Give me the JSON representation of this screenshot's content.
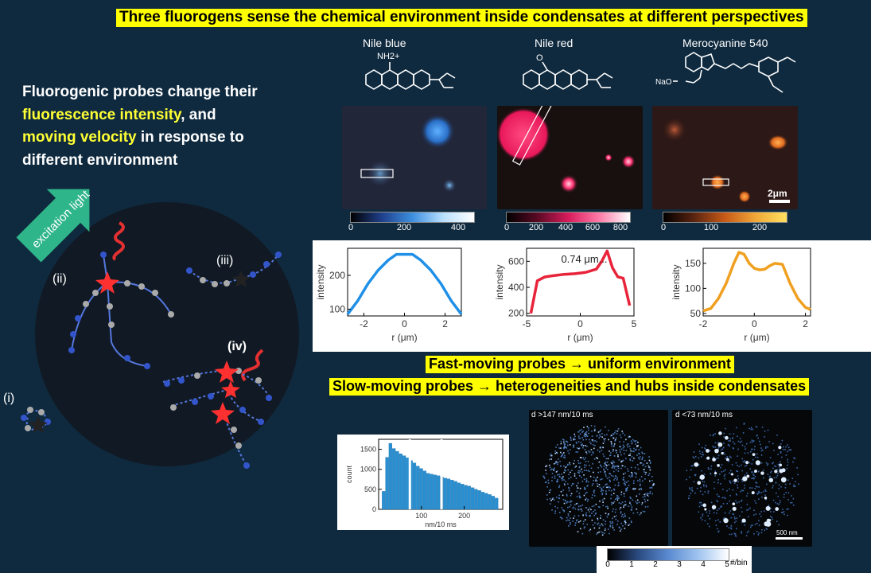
{
  "title": "Three fluorogens sense the chemical environment inside condensates at different perspectives",
  "intro": {
    "line1": "Fluorogenic probes change their",
    "hl1": "fluorescence intensity",
    "line2": ", and",
    "hl2": "moving velocity",
    "line3": " in response to different environment"
  },
  "schematic": {
    "excitation": "excitation light",
    "labels": [
      "(i)",
      "(ii)",
      "(iii)",
      "(iv)"
    ]
  },
  "dyes": [
    {
      "name": "Nile blue",
      "ticks": [
        "0",
        "200",
        "400"
      ]
    },
    {
      "name": "Nile red",
      "ticks": [
        "0",
        "200",
        "400",
        "600",
        "800"
      ]
    },
    {
      "name": "Merocyanine 540",
      "ticks": [
        "0",
        "100",
        "200"
      ]
    }
  ],
  "structures": {
    "nile_blue_amine": "NH2+",
    "nile_red_keto": "O",
    "mero_na": "NaO"
  },
  "scalebar": "2μm",
  "chart_data": [
    {
      "type": "line",
      "title": "",
      "xlabel": "r (μm)",
      "ylabel": "intensity",
      "xlim": [
        -2.8,
        2.8
      ],
      "ylim": [
        80,
        280
      ],
      "xticks": [
        -2,
        0,
        2
      ],
      "yticks": [
        100,
        200
      ],
      "color": "#1e90e8",
      "x": [
        -2.8,
        -2.3,
        -1.8,
        -1.3,
        -0.8,
        -0.4,
        0,
        0.4,
        0.8,
        1.3,
        1.8,
        2.3,
        2.8
      ],
      "y": [
        85,
        125,
        175,
        215,
        245,
        262,
        262,
        262,
        245,
        215,
        175,
        125,
        85
      ]
    },
    {
      "type": "line",
      "title": "",
      "annotation": "0.74 μm...",
      "xlabel": "r (μm)",
      "ylabel": "intensity",
      "xlim": [
        -5,
        5
      ],
      "ylim": [
        180,
        700
      ],
      "xticks": [
        -5,
        0,
        5
      ],
      "yticks": [
        200,
        400,
        600
      ],
      "color": "#e8233a",
      "x": [
        -4.6,
        -4.0,
        -3.3,
        -2.5,
        -1.5,
        -0.5,
        0.5,
        1.5,
        2.0,
        2.5,
        3.0,
        3.5,
        4.0,
        4.6
      ],
      "y": [
        200,
        450,
        480,
        490,
        500,
        505,
        515,
        540,
        600,
        680,
        550,
        480,
        470,
        260
      ]
    },
    {
      "type": "line",
      "title": "",
      "xlabel": "r (μm)",
      "ylabel": "intensity",
      "xlim": [
        -2,
        2.2
      ],
      "ylim": [
        45,
        180
      ],
      "xticks": [
        -2,
        0,
        2
      ],
      "yticks": [
        50,
        100,
        150
      ],
      "color": "#f0a020",
      "x": [
        -2.0,
        -1.7,
        -1.4,
        -1.1,
        -0.8,
        -0.6,
        -0.4,
        -0.2,
        0,
        0.2,
        0.4,
        0.6,
        0.8,
        1.1,
        1.4,
        1.7,
        2.0,
        2.2
      ],
      "y": [
        55,
        60,
        80,
        110,
        150,
        172,
        168,
        150,
        140,
        137,
        138,
        145,
        150,
        148,
        110,
        80,
        62,
        58
      ]
    },
    {
      "type": "bar",
      "title": "",
      "xlabel": "nm/10 ms",
      "ylabel": "count",
      "xlim": [
        0,
        290
      ],
      "ylim": [
        0,
        1750
      ],
      "xticks": [
        100,
        200
      ],
      "yticks": [
        0,
        500,
        1000,
        1500
      ],
      "thresholds": [
        73,
        147
      ],
      "bin_width": 8,
      "x": [
        12,
        20,
        28,
        36,
        44,
        52,
        60,
        68,
        76,
        84,
        92,
        100,
        108,
        116,
        124,
        132,
        140,
        148,
        156,
        164,
        172,
        180,
        188,
        196,
        204,
        212,
        220,
        228,
        236,
        244,
        252,
        260,
        268,
        276
      ],
      "values": [
        450,
        1300,
        1650,
        1520,
        1450,
        1390,
        1340,
        1290,
        1220,
        1160,
        1080,
        1020,
        960,
        900,
        880,
        860,
        840,
        810,
        780,
        760,
        730,
        700,
        660,
        630,
        600,
        580,
        540,
        500,
        470,
        430,
        400,
        370,
        330,
        280
      ]
    }
  ],
  "banner2": "Fast-moving probes → uniform environment",
  "banner3": "Slow-moving probes → heterogeneities and hubs inside condensates",
  "maps": [
    {
      "label": "d >147 nm/10 ms"
    },
    {
      "label": "d <73 nm/10 ms",
      "scalebar": "500 nm"
    }
  ],
  "map_colorbar": {
    "ticks": [
      "0",
      "1",
      "2",
      "3",
      "4",
      "5"
    ],
    "unit": "#/bin"
  }
}
